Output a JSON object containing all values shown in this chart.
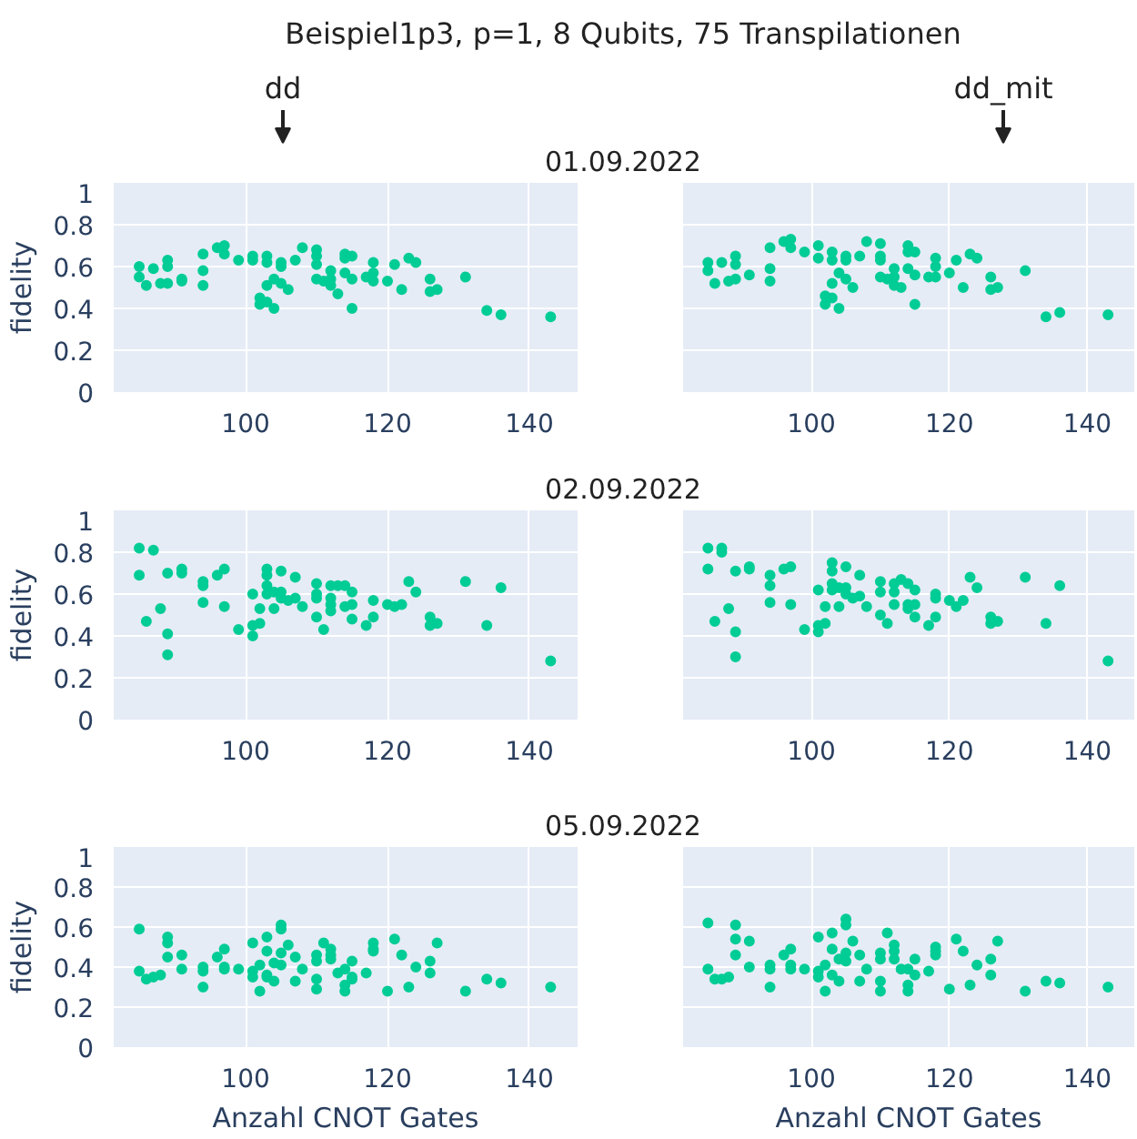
{
  "chart_data": [
    {
      "type": "scatter",
      "title": "01.09.2022",
      "annotations": [
        "Beispiel1p3, p=1, 8 Qubits, 75 Transpilationen",
        "dd"
      ],
      "ylabel": "fidelity",
      "xlim": [
        81.4,
        146.8
      ],
      "ylim": [
        0,
        1
      ],
      "xticks": [
        100,
        120,
        140
      ],
      "yticks": [
        0,
        0.2,
        0.4,
        0.6,
        0.8,
        1
      ],
      "grid": true,
      "marker": "circle",
      "x": [
        85,
        85,
        86,
        87,
        88,
        89,
        89,
        89,
        91,
        91,
        94,
        94,
        94,
        96,
        97,
        97,
        99,
        101,
        101,
        102,
        102,
        103,
        103,
        103,
        103,
        104,
        104,
        105,
        105,
        105,
        106,
        107,
        108,
        110,
        110,
        110,
        110,
        111,
        112,
        112,
        112,
        113,
        114,
        114,
        114,
        115,
        115,
        115,
        117,
        118,
        118,
        118,
        120,
        121,
        122,
        123,
        124,
        126,
        126,
        127,
        131,
        134,
        136,
        143
      ],
      "series": [
        {
          "color": "#00cc96",
          "values": [
            0.6,
            0.55,
            0.51,
            0.59,
            0.52,
            0.63,
            0.6,
            0.52,
            0.54,
            0.53,
            0.66,
            0.58,
            0.51,
            0.69,
            0.7,
            0.66,
            0.63,
            0.65,
            0.63,
            0.45,
            0.42,
            0.65,
            0.62,
            0.51,
            0.43,
            0.4,
            0.54,
            0.62,
            0.6,
            0.52,
            0.49,
            0.63,
            0.69,
            0.68,
            0.65,
            0.61,
            0.54,
            0.53,
            0.58,
            0.54,
            0.51,
            0.47,
            0.66,
            0.57,
            0.64,
            0.65,
            0.54,
            0.4,
            0.55,
            0.62,
            0.57,
            0.53,
            0.53,
            0.61,
            0.49,
            0.64,
            0.62,
            0.54,
            0.48,
            0.49,
            0.55,
            0.39,
            0.37,
            0.36
          ]
        }
      ]
    },
    {
      "type": "scatter",
      "annotations": [
        "dd_mit"
      ],
      "xlim": [
        81.4,
        146.8
      ],
      "ylim": [
        0,
        1
      ],
      "xticks": [
        100,
        120,
        140
      ],
      "yticks": [
        0,
        0.2,
        0.4,
        0.6,
        0.8,
        1
      ],
      "grid": true,
      "marker": "circle",
      "tick_labels": "x",
      "x": [
        85,
        85,
        86,
        87,
        88,
        89,
        89,
        89,
        91,
        94,
        94,
        94,
        96,
        97,
        97,
        99,
        101,
        101,
        102,
        102,
        103,
        103,
        103,
        103,
        104,
        104,
        105,
        105,
        105,
        106,
        107,
        108,
        110,
        110,
        110,
        110,
        111,
        112,
        112,
        112,
        113,
        114,
        114,
        114,
        115,
        115,
        115,
        117,
        118,
        118,
        118,
        120,
        121,
        122,
        123,
        124,
        126,
        126,
        127,
        131,
        134,
        136,
        143
      ],
      "series": [
        {
          "color": "#00cc96",
          "values": [
            0.62,
            0.58,
            0.52,
            0.62,
            0.53,
            0.65,
            0.61,
            0.54,
            0.56,
            0.69,
            0.59,
            0.53,
            0.72,
            0.73,
            0.69,
            0.67,
            0.7,
            0.64,
            0.46,
            0.42,
            0.67,
            0.63,
            0.52,
            0.45,
            0.4,
            0.57,
            0.65,
            0.63,
            0.54,
            0.5,
            0.65,
            0.72,
            0.71,
            0.65,
            0.63,
            0.55,
            0.54,
            0.59,
            0.55,
            0.51,
            0.5,
            0.7,
            0.59,
            0.67,
            0.67,
            0.56,
            0.42,
            0.55,
            0.64,
            0.6,
            0.55,
            0.57,
            0.63,
            0.5,
            0.66,
            0.64,
            0.55,
            0.49,
            0.5,
            0.58,
            0.36,
            0.38,
            0.37
          ]
        }
      ]
    },
    {
      "type": "scatter",
      "title": "02.09.2022",
      "ylabel": "fidelity",
      "xlim": [
        81.4,
        146.8
      ],
      "ylim": [
        0,
        1
      ],
      "xticks": [
        100,
        120,
        140
      ],
      "yticks": [
        0,
        0.2,
        0.4,
        0.6,
        0.8,
        1
      ],
      "grid": true,
      "marker": "circle",
      "x": [
        85,
        85,
        86,
        87,
        88,
        89,
        89,
        89,
        91,
        91,
        94,
        94,
        94,
        96,
        97,
        97,
        99,
        101,
        101,
        101,
        102,
        102,
        103,
        103,
        103,
        103,
        104,
        104,
        105,
        105,
        105,
        106,
        107,
        107,
        108,
        110,
        110,
        110,
        110,
        111,
        112,
        112,
        112,
        112,
        113,
        114,
        114,
        115,
        115,
        115,
        117,
        118,
        118,
        120,
        121,
        122,
        123,
        124,
        126,
        126,
        127,
        131,
        134,
        136,
        143
      ],
      "series": [
        {
          "color": "#00cc96",
          "values": [
            0.82,
            0.69,
            0.47,
            0.81,
            0.53,
            0.7,
            0.41,
            0.31,
            0.72,
            0.7,
            0.66,
            0.64,
            0.56,
            0.69,
            0.72,
            0.54,
            0.43,
            0.6,
            0.45,
            0.4,
            0.46,
            0.53,
            0.72,
            0.69,
            0.64,
            0.6,
            0.61,
            0.53,
            0.71,
            0.61,
            0.58,
            0.57,
            0.68,
            0.58,
            0.54,
            0.65,
            0.6,
            0.58,
            0.49,
            0.43,
            0.64,
            0.58,
            0.55,
            0.52,
            0.64,
            0.64,
            0.54,
            0.61,
            0.55,
            0.48,
            0.45,
            0.57,
            0.49,
            0.55,
            0.54,
            0.55,
            0.66,
            0.61,
            0.49,
            0.45,
            0.46,
            0.66,
            0.45,
            0.63,
            0.28
          ]
        }
      ]
    },
    {
      "type": "scatter",
      "xlim": [
        81.4,
        146.8
      ],
      "ylim": [
        0,
        1
      ],
      "xticks": [
        100,
        120,
        140
      ],
      "yticks": [
        0,
        0.2,
        0.4,
        0.6,
        0.8,
        1
      ],
      "grid": true,
      "marker": "circle",
      "tick_labels": "x",
      "x": [
        85,
        85,
        86,
        87,
        87,
        88,
        89,
        89,
        89,
        91,
        91,
        94,
        94,
        94,
        96,
        97,
        97,
        99,
        101,
        101,
        101,
        102,
        102,
        103,
        103,
        103,
        103,
        104,
        104,
        105,
        105,
        105,
        106,
        107,
        107,
        108,
        110,
        110,
        110,
        111,
        112,
        112,
        112,
        113,
        114,
        114,
        114,
        115,
        115,
        115,
        117,
        118,
        118,
        118,
        120,
        121,
        122,
        123,
        124,
        126,
        126,
        127,
        131,
        134,
        136,
        143
      ],
      "series": [
        {
          "color": "#00cc96",
          "values": [
            0.82,
            0.72,
            0.47,
            0.82,
            0.8,
            0.53,
            0.71,
            0.42,
            0.3,
            0.73,
            0.72,
            0.69,
            0.64,
            0.56,
            0.72,
            0.73,
            0.55,
            0.43,
            0.62,
            0.45,
            0.42,
            0.46,
            0.54,
            0.75,
            0.71,
            0.65,
            0.62,
            0.63,
            0.54,
            0.73,
            0.63,
            0.6,
            0.58,
            0.69,
            0.59,
            0.54,
            0.66,
            0.61,
            0.5,
            0.46,
            0.65,
            0.61,
            0.55,
            0.67,
            0.65,
            0.55,
            0.53,
            0.62,
            0.55,
            0.49,
            0.45,
            0.6,
            0.58,
            0.49,
            0.57,
            0.54,
            0.57,
            0.68,
            0.63,
            0.49,
            0.46,
            0.47,
            0.68,
            0.46,
            0.64,
            0.28
          ]
        }
      ]
    },
    {
      "type": "scatter",
      "title": "05.09.2022",
      "ylabel": "fidelity",
      "xlabel": "Anzahl CNOT Gates",
      "xlim": [
        81.4,
        146.8
      ],
      "ylim": [
        0,
        1
      ],
      "xticks": [
        100,
        120,
        140
      ],
      "yticks": [
        0,
        0.2,
        0.4,
        0.6,
        0.8,
        1
      ],
      "grid": true,
      "marker": "circle",
      "x": [
        85,
        85,
        86,
        87,
        88,
        89,
        89,
        89,
        91,
        91,
        94,
        94,
        94,
        96,
        97,
        97,
        97,
        99,
        101,
        101,
        101,
        102,
        102,
        103,
        103,
        103,
        103,
        104,
        104,
        105,
        105,
        105,
        105,
        106,
        107,
        107,
        108,
        110,
        110,
        110,
        110,
        111,
        112,
        112,
        112,
        113,
        114,
        114,
        114,
        115,
        115,
        115,
        117,
        118,
        118,
        118,
        120,
        121,
        122,
        123,
        124,
        126,
        126,
        127,
        131,
        134,
        136,
        143
      ],
      "series": [
        {
          "color": "#00cc96",
          "values": [
            0.59,
            0.38,
            0.34,
            0.35,
            0.36,
            0.55,
            0.52,
            0.45,
            0.46,
            0.39,
            0.4,
            0.38,
            0.3,
            0.45,
            0.49,
            0.4,
            0.39,
            0.39,
            0.52,
            0.38,
            0.35,
            0.41,
            0.28,
            0.55,
            0.48,
            0.36,
            0.35,
            0.42,
            0.33,
            0.61,
            0.59,
            0.47,
            0.41,
            0.51,
            0.45,
            0.33,
            0.39,
            0.46,
            0.43,
            0.34,
            0.29,
            0.52,
            0.49,
            0.46,
            0.44,
            0.37,
            0.39,
            0.31,
            0.28,
            0.43,
            0.35,
            0.34,
            0.37,
            0.52,
            0.49,
            0.48,
            0.28,
            0.54,
            0.46,
            0.3,
            0.4,
            0.43,
            0.37,
            0.52,
            0.28,
            0.34,
            0.32,
            0.3
          ]
        }
      ]
    },
    {
      "type": "scatter",
      "xlabel": "Anzahl CNOT Gates",
      "xlim": [
        81.4,
        146.8
      ],
      "ylim": [
        0,
        1
      ],
      "xticks": [
        100,
        120,
        140
      ],
      "yticks": [
        0,
        0.2,
        0.4,
        0.6,
        0.8,
        1
      ],
      "grid": true,
      "marker": "circle",
      "tick_labels": "x",
      "x": [
        85,
        85,
        86,
        87,
        88,
        89,
        89,
        89,
        91,
        91,
        94,
        94,
        94,
        96,
        97,
        97,
        97,
        99,
        101,
        101,
        101,
        102,
        102,
        103,
        103,
        103,
        104,
        104,
        105,
        105,
        105,
        105,
        106,
        107,
        107,
        108,
        110,
        110,
        110,
        110,
        111,
        112,
        112,
        112,
        113,
        114,
        114,
        114,
        115,
        115,
        117,
        118,
        118,
        118,
        120,
        121,
        122,
        123,
        124,
        126,
        126,
        127,
        131,
        134,
        136,
        143
      ],
      "series": [
        {
          "color": "#00cc96",
          "values": [
            0.62,
            0.39,
            0.34,
            0.34,
            0.35,
            0.61,
            0.54,
            0.46,
            0.53,
            0.4,
            0.41,
            0.39,
            0.3,
            0.46,
            0.49,
            0.41,
            0.39,
            0.39,
            0.55,
            0.38,
            0.35,
            0.41,
            0.28,
            0.57,
            0.49,
            0.36,
            0.44,
            0.33,
            0.64,
            0.61,
            0.47,
            0.43,
            0.53,
            0.46,
            0.33,
            0.39,
            0.47,
            0.44,
            0.33,
            0.28,
            0.57,
            0.51,
            0.48,
            0.44,
            0.39,
            0.39,
            0.31,
            0.28,
            0.44,
            0.36,
            0.38,
            0.5,
            0.48,
            0.46,
            0.29,
            0.54,
            0.48,
            0.31,
            0.41,
            0.44,
            0.36,
            0.53,
            0.28,
            0.33,
            0.32,
            0.3
          ]
        }
      ]
    }
  ]
}
